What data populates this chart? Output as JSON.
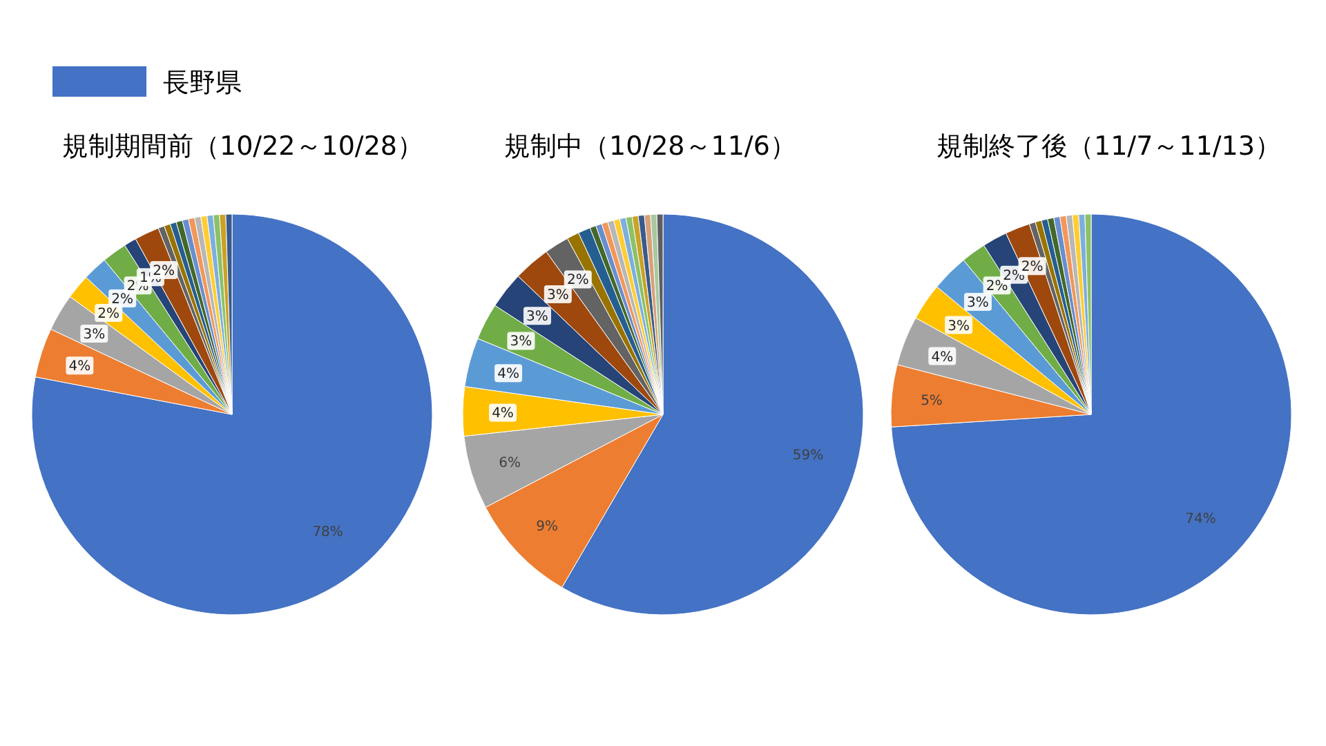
{
  "chart_data": [
    {
      "type": "pie",
      "title": "規制期間前（10/22～10/28）",
      "legend": "top left",
      "categories": [
        "長野県",
        null,
        null,
        null,
        null,
        null,
        null,
        null,
        null,
        null,
        null,
        null,
        null,
        null,
        null,
        null,
        null,
        null,
        null,
        null
      ],
      "values": [
        78,
        4,
        3,
        2,
        2,
        2,
        1,
        2,
        0.5,
        0.5,
        0.5,
        0.5,
        0.5,
        0.5,
        0.5,
        0.5,
        0.5,
        0.5,
        0.5,
        0.5
      ],
      "value_labels": [
        "78%",
        "4%",
        "3%",
        "2%",
        "2%",
        "2%",
        "1%",
        "2%",
        null,
        null,
        null,
        null,
        null,
        null,
        null,
        null,
        null,
        null,
        null,
        null
      ],
      "colors": [
        "#4472c4",
        "#ed7d31",
        "#a5a5a5",
        "#ffc000",
        "#5b9bd5",
        "#70ad47",
        "#264478",
        "#9e480e",
        "#636363",
        "#997300",
        "#255e91",
        "#43682b",
        "#698ed0",
        "#f1975a",
        "#b7b7b7",
        "#ffcd33",
        "#7cafdd",
        "#8cc168",
        "#c9a227",
        "#3a5a8c"
      ]
    },
    {
      "type": "pie",
      "title": "規制中（10/28～11/6）",
      "categories": [
        null,
        null,
        null,
        null,
        null,
        null,
        null,
        null,
        null,
        null,
        null,
        null,
        null,
        null,
        null,
        null,
        null,
        null,
        null,
        null,
        null,
        null,
        null
      ],
      "values": [
        59,
        9,
        6,
        4,
        4,
        3,
        3,
        3,
        2,
        1,
        1,
        0.5,
        0.5,
        0.5,
        0.5,
        0.5,
        0.5,
        0.5,
        0.5,
        0.5,
        0.5,
        0.5,
        0.5
      ],
      "value_labels": [
        "59%",
        "9%",
        "6%",
        "4%",
        "4%",
        "3%",
        "3%",
        "3%",
        "2%",
        null,
        null,
        null,
        null,
        null,
        null,
        null,
        null,
        null,
        null,
        null,
        null,
        null,
        null
      ],
      "colors": [
        "#4472c4",
        "#ed7d31",
        "#a5a5a5",
        "#ffc000",
        "#5b9bd5",
        "#70ad47",
        "#264478",
        "#9e480e",
        "#636363",
        "#997300",
        "#255e91",
        "#43682b",
        "#698ed0",
        "#f1975a",
        "#b7b7b7",
        "#ffcd33",
        "#7cafdd",
        "#8cc168",
        "#c9a227",
        "#3a5a8c",
        "#d6a17a",
        "#a9c8a0",
        "#5e5e5e"
      ]
    },
    {
      "type": "pie",
      "title": "規制終了後（11/7～11/13）",
      "categories": [
        null,
        null,
        null,
        null,
        null,
        null,
        null,
        null,
        null,
        null,
        null,
        null,
        null,
        null,
        null,
        null,
        null,
        null
      ],
      "values": [
        74,
        5,
        4,
        3,
        3,
        2,
        2,
        2,
        0.5,
        0.5,
        0.5,
        0.5,
        0.5,
        0.5,
        0.5,
        0.5,
        0.5,
        0.5
      ],
      "value_labels": [
        "74%",
        "5%",
        "4%",
        "3%",
        "3%",
        "2%",
        "2%",
        "2%",
        null,
        null,
        null,
        null,
        null,
        null,
        null,
        null,
        null,
        null
      ],
      "colors": [
        "#4472c4",
        "#ed7d31",
        "#a5a5a5",
        "#ffc000",
        "#5b9bd5",
        "#70ad47",
        "#264478",
        "#9e480e",
        "#636363",
        "#997300",
        "#255e91",
        "#43682b",
        "#698ed0",
        "#f1975a",
        "#b7b7b7",
        "#ffcd33",
        "#7cafdd",
        "#8cc168"
      ]
    }
  ]
}
